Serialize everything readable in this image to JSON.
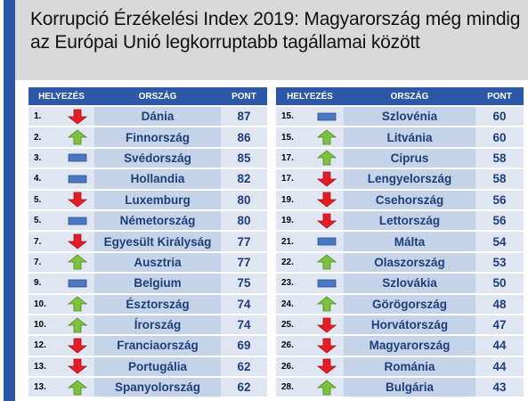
{
  "title": "Korrupció Érzékelési Index 2019: Magyarország még mindig az Európai Unió legkorruptabb tagállamai között",
  "headers": {
    "rank": "HELYEZÉS",
    "country": "ORSZÁG",
    "score": "PONT"
  },
  "colors": {
    "header": "#2b57a6",
    "country_cell": "#c5d3e8",
    "cell": "#dfe6f2",
    "text": "#1f3e7a",
    "arrow_up": "#7dc13e",
    "arrow_down": "#e51c23",
    "same": "#4a78c2"
  },
  "left": [
    {
      "rank": "1.",
      "trend": "down",
      "country": "Dánia",
      "score": "87"
    },
    {
      "rank": "2.",
      "trend": "up",
      "country": "Finnország",
      "score": "86"
    },
    {
      "rank": "3.",
      "trend": "same",
      "country": "Svédország",
      "score": "85"
    },
    {
      "rank": "4.",
      "trend": "same",
      "country": "Hollandia",
      "score": "82"
    },
    {
      "rank": "5.",
      "trend": "down",
      "country": "Luxemburg",
      "score": "80"
    },
    {
      "rank": "5.",
      "trend": "same",
      "country": "Németország",
      "score": "80"
    },
    {
      "rank": "7.",
      "trend": "down",
      "country": "Egyesült Királyság",
      "score": "77"
    },
    {
      "rank": "7.",
      "trend": "up",
      "country": "Ausztria",
      "score": "77"
    },
    {
      "rank": "9.",
      "trend": "same",
      "country": "Belgium",
      "score": "75"
    },
    {
      "rank": "10.",
      "trend": "up",
      "country": "Észtország",
      "score": "74"
    },
    {
      "rank": "10.",
      "trend": "up",
      "country": "Írország",
      "score": "74"
    },
    {
      "rank": "12.",
      "trend": "down",
      "country": "Franciaország",
      "score": "69"
    },
    {
      "rank": "13.",
      "trend": "down",
      "country": "Portugália",
      "score": "62"
    },
    {
      "rank": "13.",
      "trend": "up",
      "country": "Spanyolország",
      "score": "62"
    }
  ],
  "right": [
    {
      "rank": "15.",
      "trend": "same",
      "country": "Szlovénia",
      "score": "60"
    },
    {
      "rank": "15.",
      "trend": "up",
      "country": "Litvánia",
      "score": "60"
    },
    {
      "rank": "17.",
      "trend": "up",
      "country": "Ciprus",
      "score": "58"
    },
    {
      "rank": "17.",
      "trend": "down",
      "country": "Lengyelország",
      "score": "58"
    },
    {
      "rank": "19.",
      "trend": "down",
      "country": "Csehország",
      "score": "56"
    },
    {
      "rank": "19.",
      "trend": "down",
      "country": "Lettország",
      "score": "56"
    },
    {
      "rank": "21.",
      "trend": "same",
      "country": "Málta",
      "score": "54"
    },
    {
      "rank": "22.",
      "trend": "up",
      "country": "Olaszország",
      "score": "53"
    },
    {
      "rank": "23.",
      "trend": "same",
      "country": "Szlovákia",
      "score": "50"
    },
    {
      "rank": "24.",
      "trend": "up",
      "country": "Görögország",
      "score": "48"
    },
    {
      "rank": "25.",
      "trend": "down",
      "country": "Horvátország",
      "score": "47"
    },
    {
      "rank": "26.",
      "trend": "down",
      "country": "Magyarország",
      "score": "44"
    },
    {
      "rank": "26.",
      "trend": "down",
      "country": "Románia",
      "score": "44"
    },
    {
      "rank": "28.",
      "trend": "up",
      "country": "Bulgária",
      "score": "43"
    }
  ]
}
